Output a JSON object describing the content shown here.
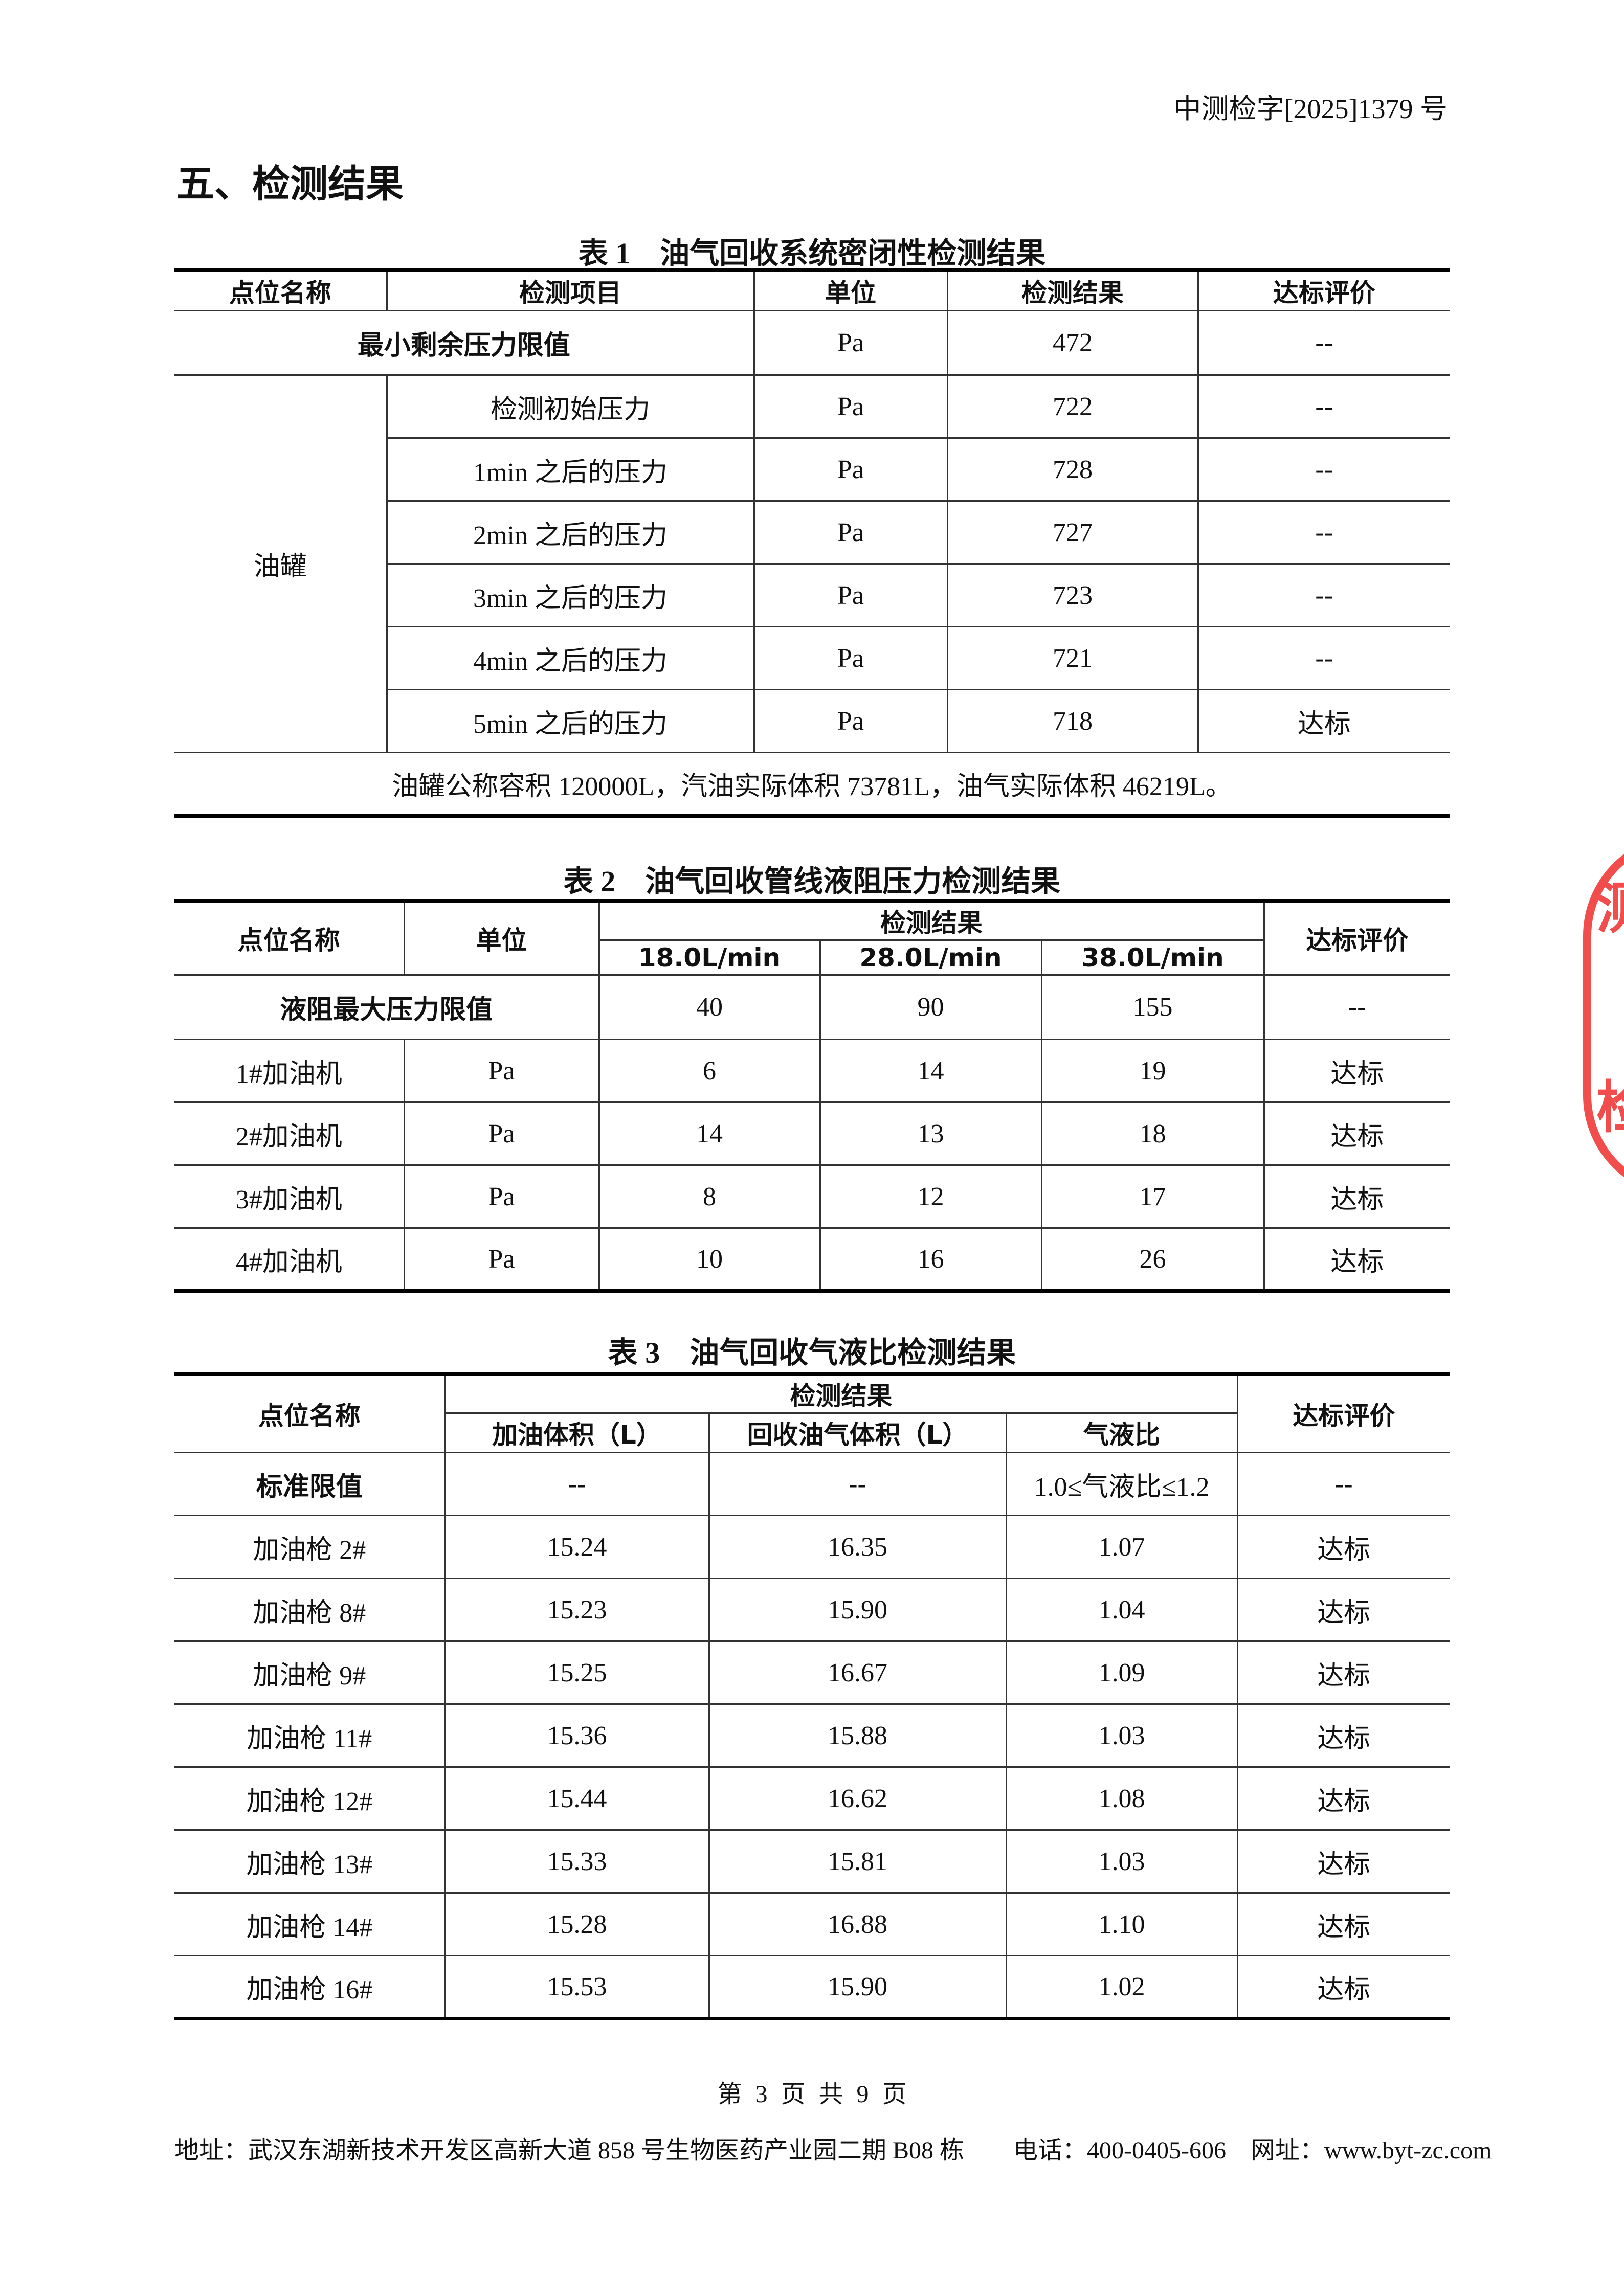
{
  "header": {
    "doc_number": "中测检字[2025]1379 号"
  },
  "section_title": "五、检测结果",
  "table1": {
    "caption": "表 1　油气回收系统密闭性检测结果",
    "headers": [
      "点位名称",
      "检测项目",
      "单位",
      "检测结果",
      "达标评价"
    ],
    "limit_row": {
      "label": "最小剩余压力限值",
      "unit": "Pa",
      "result": "472",
      "eval": "--"
    },
    "group_label": "油罐",
    "rows": [
      {
        "item": "检测初始压力",
        "unit": "Pa",
        "result": "722",
        "eval": "--"
      },
      {
        "item": "1min 之后的压力",
        "unit": "Pa",
        "result": "728",
        "eval": "--"
      },
      {
        "item": "2min 之后的压力",
        "unit": "Pa",
        "result": "727",
        "eval": "--"
      },
      {
        "item": "3min 之后的压力",
        "unit": "Pa",
        "result": "723",
        "eval": "--"
      },
      {
        "item": "4min 之后的压力",
        "unit": "Pa",
        "result": "721",
        "eval": "--"
      },
      {
        "item": "5min 之后的压力",
        "unit": "Pa",
        "result": "718",
        "eval": "达标"
      }
    ],
    "note": "油罐公称容积 120000L，汽油实际体积 73781L，油气实际体积 46219L。"
  },
  "table2": {
    "caption": "表 2　油气回收管线液阻压力检测结果",
    "headers": {
      "point": "点位名称",
      "unit": "单位",
      "result": "检测结果",
      "eval": "达标评价",
      "flows": [
        "18.0L/min",
        "28.0L/min",
        "38.0L/min"
      ]
    },
    "limit_row": {
      "label": "液阻最大压力限值",
      "values": [
        "40",
        "90",
        "155"
      ],
      "eval": "--"
    },
    "rows": [
      {
        "point": "1#加油机",
        "unit": "Pa",
        "values": [
          "6",
          "14",
          "19"
        ],
        "eval": "达标"
      },
      {
        "point": "2#加油机",
        "unit": "Pa",
        "values": [
          "14",
          "13",
          "18"
        ],
        "eval": "达标"
      },
      {
        "point": "3#加油机",
        "unit": "Pa",
        "values": [
          "8",
          "12",
          "17"
        ],
        "eval": "达标"
      },
      {
        "point": "4#加油机",
        "unit": "Pa",
        "values": [
          "10",
          "16",
          "26"
        ],
        "eval": "达标"
      }
    ]
  },
  "table3": {
    "caption": "表 3　油气回收气液比检测结果",
    "headers": {
      "point": "点位名称",
      "result": "检测结果",
      "eval": "达标评价",
      "subs": [
        "加油体积（L）",
        "回收油气体积（L）",
        "气液比"
      ]
    },
    "limit_row": {
      "label": "标准限值",
      "values": [
        "--",
        "--",
        "1.0≤气液比≤1.2"
      ],
      "eval": "--"
    },
    "rows": [
      {
        "point": "加油枪 2#",
        "values": [
          "15.24",
          "16.35",
          "1.07"
        ],
        "eval": "达标"
      },
      {
        "point": "加油枪 8#",
        "values": [
          "15.23",
          "15.90",
          "1.04"
        ],
        "eval": "达标"
      },
      {
        "point": "加油枪 9#",
        "values": [
          "15.25",
          "16.67",
          "1.09"
        ],
        "eval": "达标"
      },
      {
        "point": "加油枪 11#",
        "values": [
          "15.36",
          "15.88",
          "1.03"
        ],
        "eval": "达标"
      },
      {
        "point": "加油枪 12#",
        "values": [
          "15.44",
          "16.62",
          "1.08"
        ],
        "eval": "达标"
      },
      {
        "point": "加油枪 13#",
        "values": [
          "15.33",
          "15.81",
          "1.03"
        ],
        "eval": "达标"
      },
      {
        "point": "加油枪 14#",
        "values": [
          "15.28",
          "16.88",
          "1.10"
        ],
        "eval": "达标"
      },
      {
        "point": "加油枪 16#",
        "values": [
          "15.53",
          "15.90",
          "1.02"
        ],
        "eval": "达标"
      }
    ]
  },
  "page_number": "第 3 页 共 9 页",
  "footer": "地址：武汉东湖新技术开发区高新大道 858 号生物医药产业园二期 B08 栋　　电话：400-0405-606　网址：www.byt-zc.com",
  "stamp": {
    "text": "检测",
    "color": "#f03a3a"
  }
}
